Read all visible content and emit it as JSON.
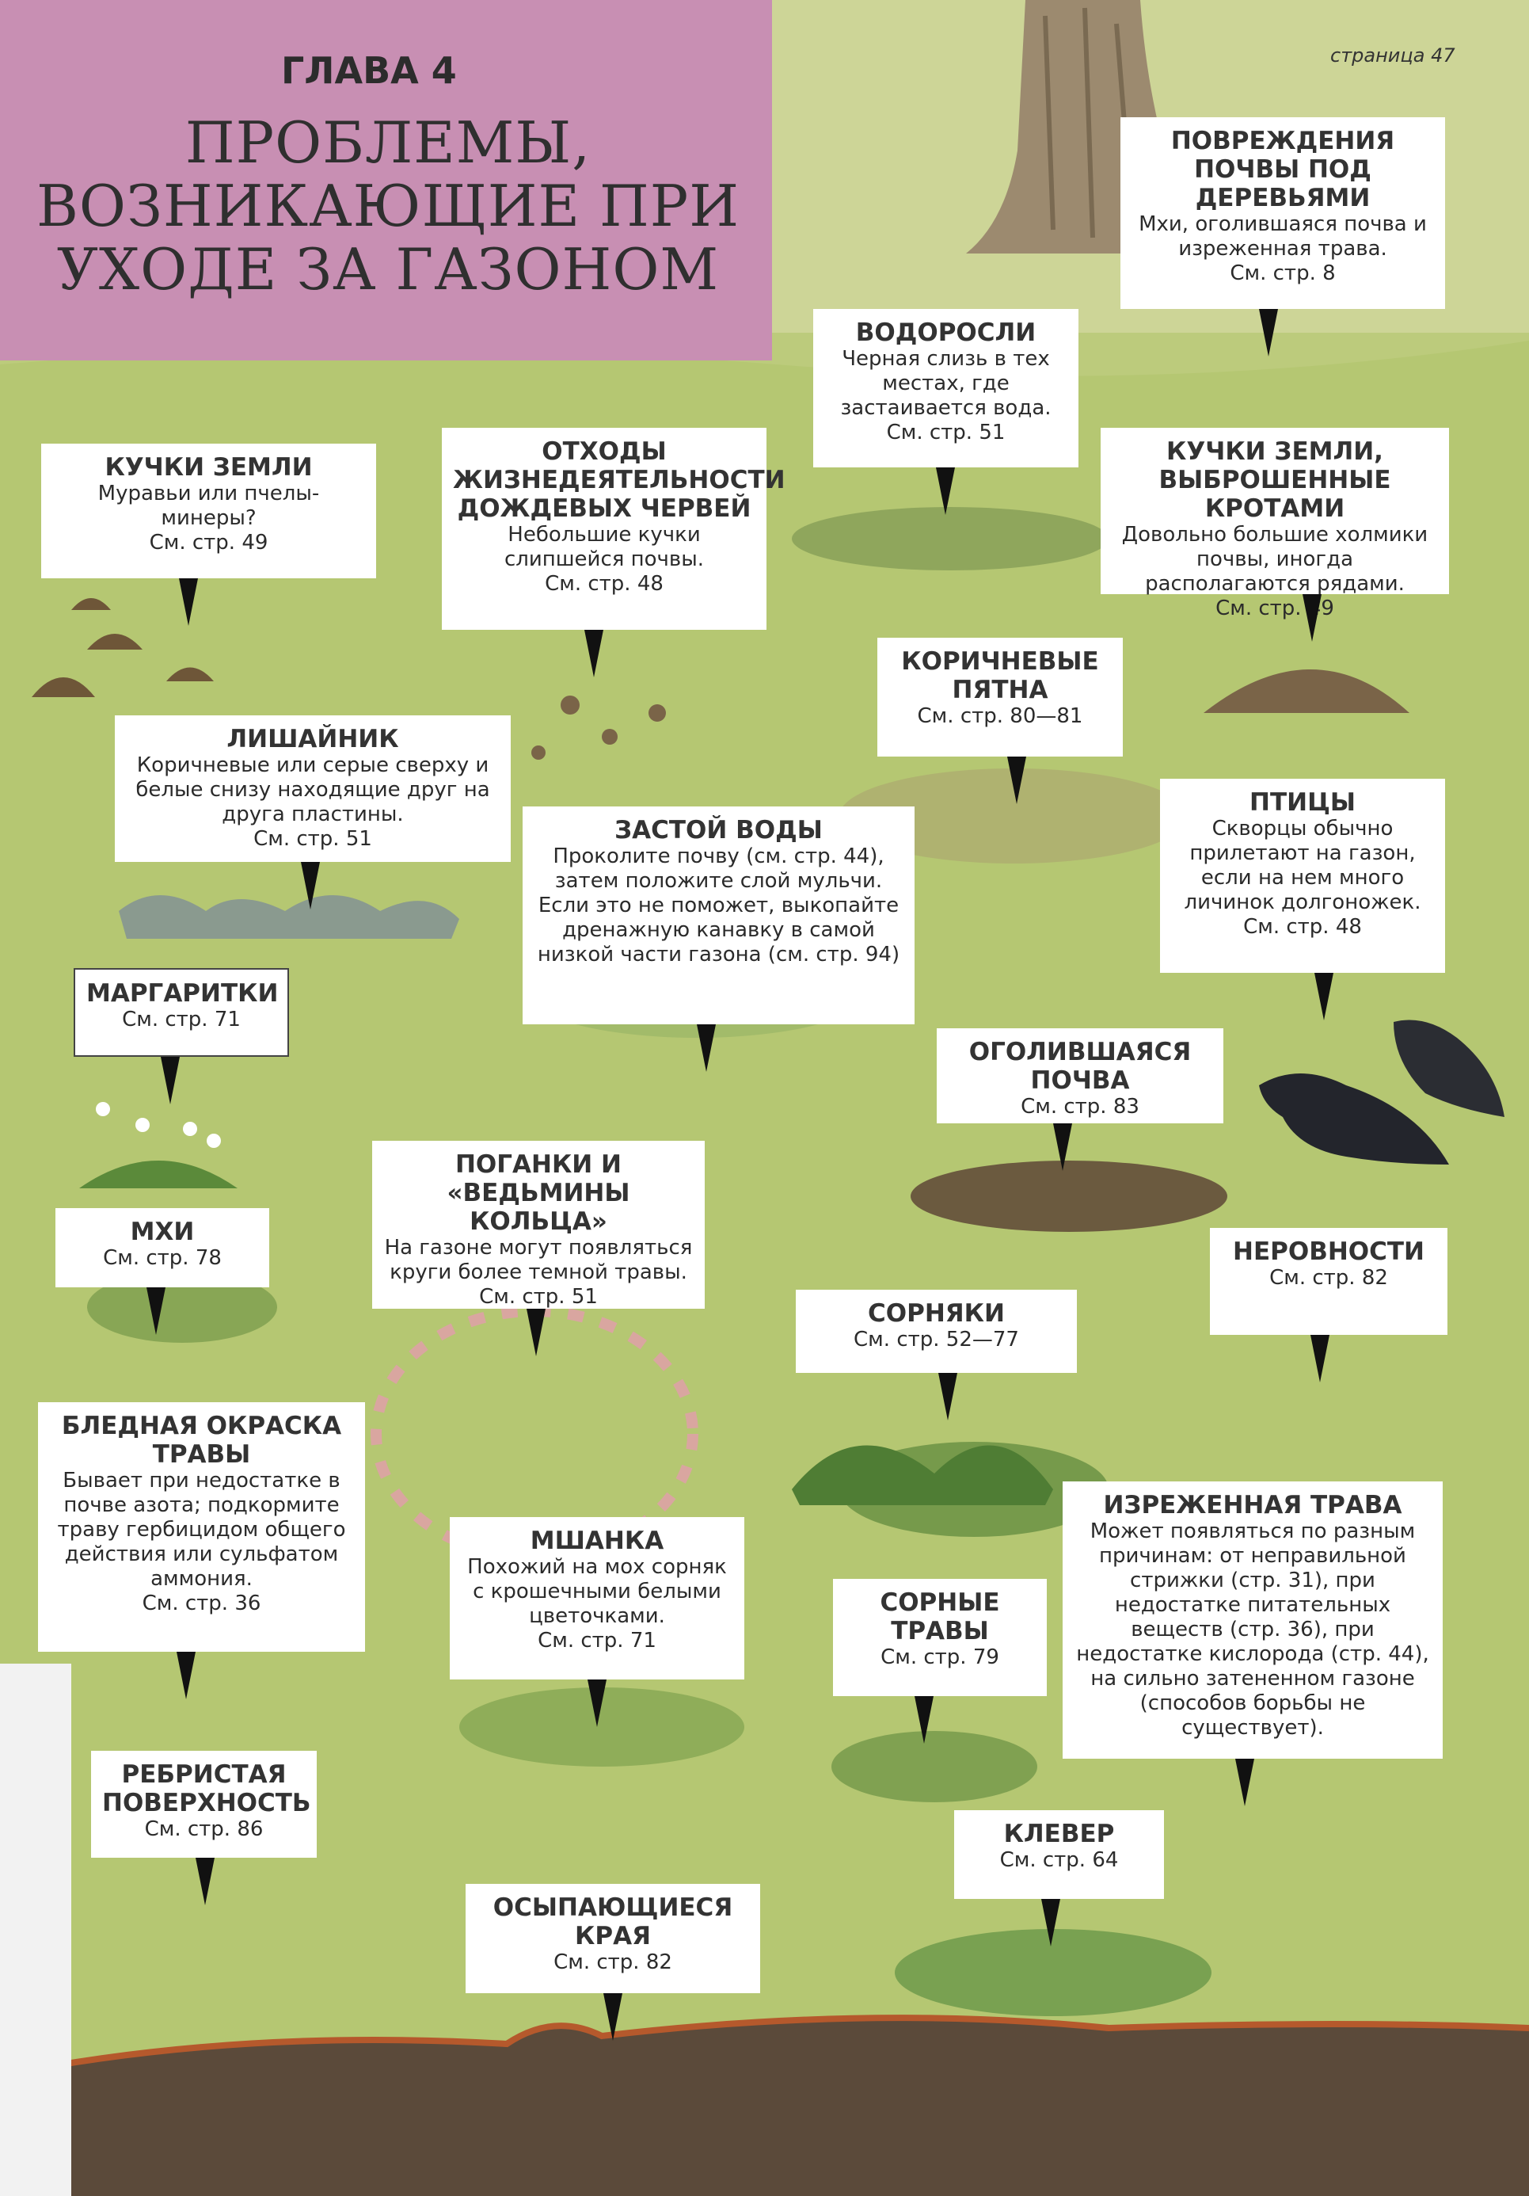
{
  "header": {
    "chapter": "ГЛАВА 4",
    "title_lines": [
      "ПРОБЛЕМЫ,",
      "ВОЗНИКАЮЩИЕ ПРИ",
      "УХОДЕ ЗА ГАЗОНОМ"
    ],
    "page": "страница 47"
  },
  "colors": {
    "header_bg": "#c88fb3",
    "lawn": "#b9c97a",
    "card_bg": "#ffffff",
    "pointer": "#111111"
  },
  "cards": {
    "tree_damage": {
      "title": "ПОВРЕЖДЕНИЯ ПОЧВЫ ПОД ДЕРЕВЬЯМИ",
      "desc": "Мхи, оголившаяся почва и изреженная трава.",
      "ref": "См. стр. 8"
    },
    "algae": {
      "title": "ВОДОРОСЛИ",
      "desc": "Черная слизь в тех местах, где застаивается вода.",
      "ref": "См. стр. 51"
    },
    "ant_hills": {
      "title": "КУЧКИ ЗЕМЛИ",
      "desc": "Муравьи или пчелы-минеры?",
      "ref": "См. стр. 49"
    },
    "worm_casts": {
      "title": "ОТХОДЫ ЖИЗНЕДЕЯТЕЛЬНОСТИ ДОЖДЕВЫХ ЧЕРВЕЙ",
      "desc": "Небольшие кучки слипшейся почвы.",
      "ref": "См. стр. 48"
    },
    "mole_hills": {
      "title": "КУЧКИ ЗЕМЛИ, ВЫБРОШЕННЫЕ КРОТАМИ",
      "desc": "Довольно большие холмики почвы, иногда располагаются рядами.",
      "ref": "См. стр. 49"
    },
    "brown_patches": {
      "title": "КОРИЧНЕВЫЕ ПЯТНА",
      "desc": "",
      "ref": "См. стр. 80—81"
    },
    "lichen": {
      "title": "ЛИШАЙНИК",
      "desc": "Коричневые или серые сверху и белые снизу находящие друг на друга пластины.",
      "ref": "См. стр. 51"
    },
    "waterlogging": {
      "title": "ЗАСТОЙ ВОДЫ",
      "desc": "Проколите почву (см. стр. 44), затем положите слой мульчи. Если это не поможет, выкопайте дренажную канавку в самой низкой части газона (см. стр. 94)",
      "ref": ""
    },
    "birds": {
      "title": "ПТИЦЫ",
      "desc": "Скворцы обычно прилетают на газон, если на нем много личинок долгоножек.",
      "ref": "См. стр. 48"
    },
    "daisies": {
      "title": "МАРГАРИТКИ",
      "desc": "",
      "ref": "См. стр. 71"
    },
    "bare_soil": {
      "title": "ОГОЛИВШАЯСЯ ПОЧВА",
      "desc": "",
      "ref": "См. стр. 83"
    },
    "toadstools": {
      "title": "ПОГАНКИ И «ВЕДЬМИНЫ КОЛЬЦА»",
      "desc": "На газоне могут появляться круги более темной травы.",
      "ref": "См. стр. 51"
    },
    "mosses": {
      "title": "МХИ",
      "desc": "",
      "ref": "См. стр. 78"
    },
    "bumps": {
      "title": "НЕРОВНОСТИ",
      "desc": "",
      "ref": "См. стр. 82"
    },
    "weeds": {
      "title": "СОРНЯКИ",
      "desc": "",
      "ref": "См. стр. 52—77"
    },
    "pale_grass": {
      "title": "БЛЕДНАЯ ОКРАСКА ТРАВЫ",
      "desc": "Бывает при недостатке в почве азота; подкормите траву гербицидом общего действия или сульфатом аммония.",
      "ref": "См. стр. 36"
    },
    "pearlwort": {
      "title": "МШАНКА",
      "desc": "Похожий на мох сорняк с крошечными белыми цветочками.",
      "ref": "См. стр. 71"
    },
    "weed_grasses": {
      "title": "СОРНЫЕ ТРАВЫ",
      "desc": "",
      "ref": "См. стр. 79"
    },
    "thin_grass": {
      "title": "ИЗРЕЖЕННАЯ ТРАВА",
      "desc": "Может появляться по разным причинам: от неправильной стрижки (стр. 31), при недостатке питательных веществ (стр. 36), при недостатке кислорода (стр. 44), на сильно затененном газоне (способов борьбы не существует).",
      "ref": ""
    },
    "ribbed": {
      "title": "РЕБРИСТАЯ ПОВЕРХНОСТЬ",
      "desc": "",
      "ref": "См. стр. 86"
    },
    "clover": {
      "title": "КЛЕВЕР",
      "desc": "",
      "ref": "См. стр. 64"
    },
    "edges": {
      "title": "ОСЫПАЮЩИЕСЯ КРАЯ",
      "desc": "",
      "ref": "См. стр. 82"
    }
  }
}
